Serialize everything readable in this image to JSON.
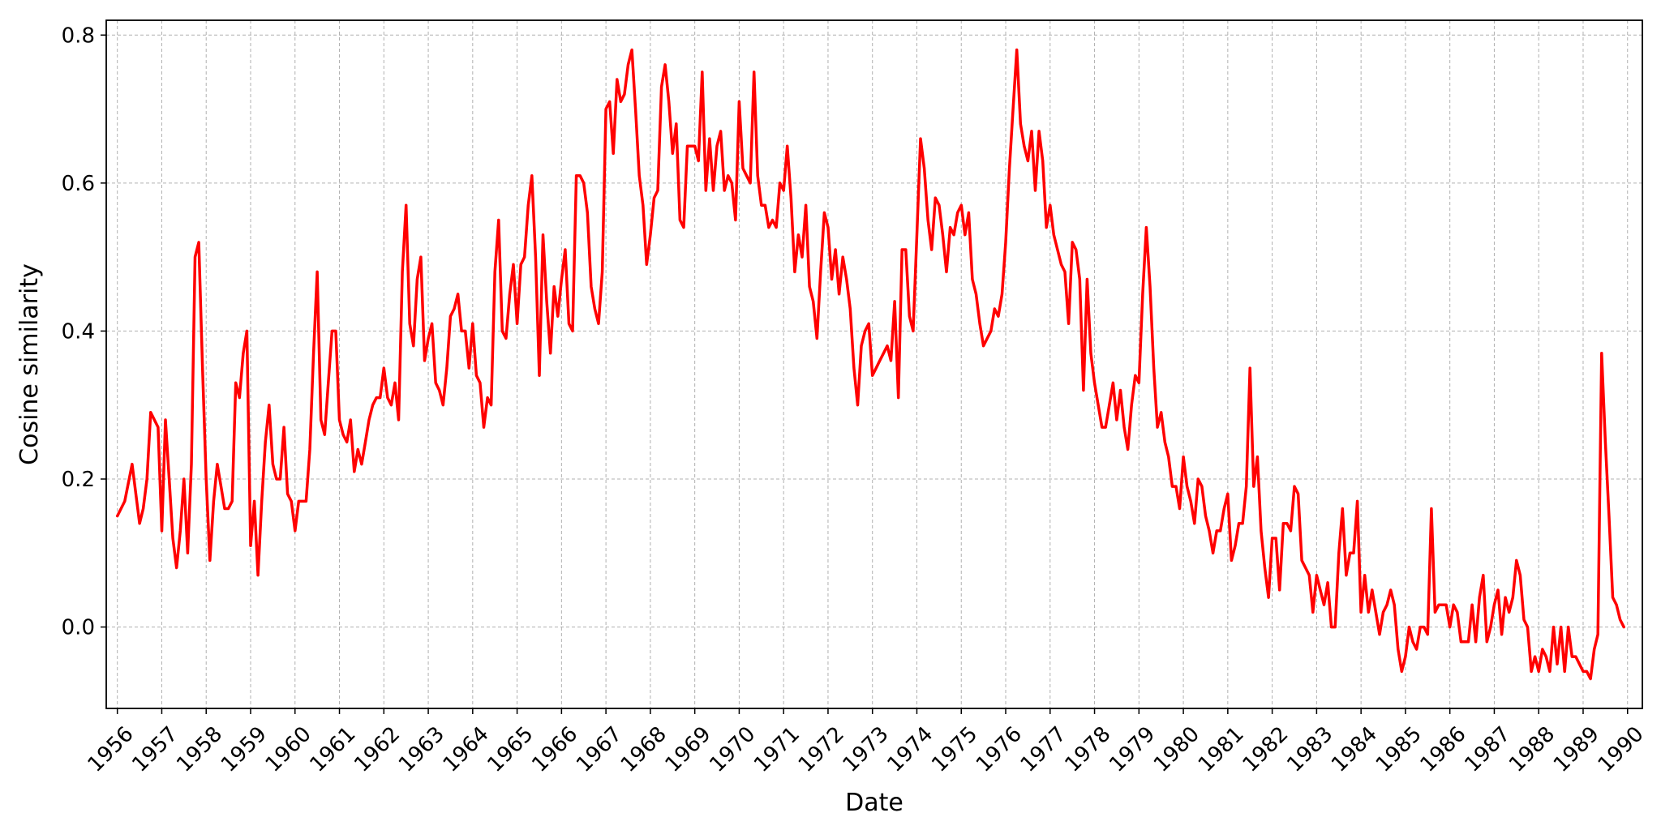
{
  "chart_data": {
    "type": "line",
    "title": "",
    "xlabel": "Date",
    "ylabel": "Cosine similarity",
    "xlim": [
      "1955-10-01",
      "1990-05-01"
    ],
    "ylim": [
      -0.11,
      0.82
    ],
    "x_tick_labels": [
      "1956",
      "1957",
      "1958",
      "1959",
      "1960",
      "1961",
      "1962",
      "1963",
      "1964",
      "1965",
      "1966",
      "1967",
      "1968",
      "1969",
      "1970",
      "1971",
      "1972",
      "1973",
      "1974",
      "1975",
      "1976",
      "1977",
      "1978",
      "1979",
      "1980",
      "1981",
      "1982",
      "1983",
      "1984",
      "1985",
      "1986",
      "1987",
      "1988",
      "1989",
      "1990"
    ],
    "y_ticks": [
      0.0,
      0.2,
      0.4,
      0.6,
      0.8
    ],
    "y_tick_labels": [
      "0.0",
      "0.2",
      "0.4",
      "0.6",
      "0.8"
    ],
    "grid": true,
    "colors": {
      "line": "#ff0000",
      "grid": "#b0b0b0",
      "axis": "#000000"
    },
    "series": [
      {
        "x": [
          "1956-01",
          "1956-03",
          "1956-05",
          "1956-07",
          "1956-08",
          "1956-09",
          "1956-10",
          "1956-12",
          "1957-01",
          "1957-02",
          "1957-03",
          "1957-04",
          "1957-05",
          "1957-06",
          "1957-07",
          "1957-08",
          "1957-09",
          "1957-10",
          "1957-11",
          "1957-12",
          "1958-01",
          "1958-02",
          "1958-03",
          "1958-04",
          "1958-05",
          "1958-06",
          "1958-07",
          "1958-08",
          "1958-09",
          "1958-10",
          "1958-11",
          "1958-12",
          "1959-01",
          "1959-02",
          "1959-03",
          "1959-04",
          "1959-05",
          "1959-06",
          "1959-07",
          "1959-08",
          "1959-09",
          "1959-10",
          "1959-11",
          "1959-12",
          "1960-01",
          "1960-02",
          "1960-03",
          "1960-04",
          "1960-05",
          "1960-06",
          "1960-07",
          "1960-08",
          "1960-09",
          "1960-10",
          "1960-11",
          "1960-12",
          "1961-01",
          "1961-02",
          "1961-03",
          "1961-04",
          "1961-05",
          "1961-06",
          "1961-07",
          "1961-08",
          "1961-09",
          "1961-10",
          "1961-11",
          "1961-12",
          "1962-01",
          "1962-02",
          "1962-03",
          "1962-04",
          "1962-05",
          "1962-06",
          "1962-07",
          "1962-08",
          "1962-09",
          "1962-10",
          "1962-11",
          "1962-12",
          "1963-01",
          "1963-02",
          "1963-03",
          "1963-04",
          "1963-05",
          "1963-06",
          "1963-07",
          "1963-08",
          "1963-09",
          "1963-10",
          "1963-11",
          "1963-12",
          "1964-01",
          "1964-02",
          "1964-03",
          "1964-04",
          "1964-05",
          "1964-06",
          "1964-07",
          "1964-08",
          "1964-09",
          "1964-10",
          "1964-11",
          "1964-12",
          "1965-01",
          "1965-02",
          "1965-03",
          "1965-04",
          "1965-05",
          "1965-06",
          "1965-07",
          "1965-08",
          "1965-09",
          "1965-10",
          "1965-11",
          "1965-12",
          "1966-01",
          "1966-02",
          "1966-03",
          "1966-04",
          "1966-05",
          "1966-06",
          "1966-07",
          "1966-08",
          "1966-09",
          "1966-10",
          "1966-11",
          "1966-12",
          "1967-01",
          "1967-02",
          "1967-03",
          "1967-04",
          "1967-05",
          "1967-06",
          "1967-07",
          "1967-08",
          "1967-09",
          "1967-10",
          "1967-11",
          "1967-12",
          "1968-01",
          "1968-02",
          "1968-03",
          "1968-04",
          "1968-05",
          "1968-06",
          "1968-07",
          "1968-08",
          "1968-09",
          "1968-10",
          "1968-11",
          "1968-12",
          "1969-01",
          "1969-02",
          "1969-03",
          "1969-04",
          "1969-05",
          "1969-06",
          "1969-07",
          "1969-08",
          "1969-09",
          "1969-10",
          "1969-11",
          "1969-12",
          "1970-01",
          "1970-02",
          "1970-03",
          "1970-04",
          "1970-05",
          "1970-06",
          "1970-07",
          "1970-08",
          "1970-09",
          "1970-10",
          "1970-11",
          "1970-12",
          "1971-01",
          "1971-02",
          "1971-03",
          "1971-04",
          "1971-05",
          "1971-06",
          "1971-07",
          "1971-08",
          "1971-09",
          "1971-10",
          "1971-11",
          "1971-12",
          "1972-01",
          "1972-02",
          "1972-03",
          "1972-04",
          "1972-05",
          "1972-06",
          "1972-07",
          "1972-08",
          "1972-09",
          "1972-10",
          "1972-11",
          "1972-12",
          "1973-01",
          "1973-02",
          "1973-03",
          "1973-04",
          "1973-05",
          "1973-06",
          "1973-07",
          "1973-08",
          "1973-09",
          "1973-10",
          "1973-11",
          "1973-12",
          "1974-01",
          "1974-02",
          "1974-03",
          "1974-04",
          "1974-05",
          "1974-06",
          "1974-07",
          "1974-08",
          "1974-09",
          "1974-10",
          "1974-11",
          "1974-12",
          "1975-01",
          "1975-02",
          "1975-03",
          "1975-04",
          "1975-05",
          "1975-06",
          "1975-07",
          "1975-08",
          "1975-09",
          "1975-10",
          "1975-11",
          "1975-12",
          "1976-01",
          "1976-02",
          "1976-03",
          "1976-04",
          "1976-05",
          "1976-06",
          "1976-07",
          "1976-08",
          "1976-09",
          "1976-10",
          "1976-11",
          "1976-12",
          "1977-01",
          "1977-02",
          "1977-03",
          "1977-04",
          "1977-05",
          "1977-06",
          "1977-07",
          "1977-08",
          "1977-09",
          "1977-10",
          "1977-11",
          "1977-12",
          "1978-01",
          "1978-02",
          "1978-03",
          "1978-04",
          "1978-05",
          "1978-06",
          "1978-07",
          "1978-08",
          "1978-09",
          "1978-10",
          "1978-11",
          "1978-12",
          "1979-01",
          "1979-02",
          "1979-03",
          "1979-04",
          "1979-05",
          "1979-06",
          "1979-07",
          "1979-08",
          "1979-09",
          "1979-10",
          "1979-11",
          "1979-12",
          "1980-01",
          "1980-02",
          "1980-03",
          "1980-04",
          "1980-05",
          "1980-06",
          "1980-07",
          "1980-08",
          "1980-09",
          "1980-10",
          "1980-11",
          "1980-12",
          "1981-01",
          "1981-02",
          "1981-03",
          "1981-04",
          "1981-05",
          "1981-06",
          "1981-07",
          "1981-08",
          "1981-09",
          "1981-10",
          "1981-11",
          "1981-12",
          "1982-01",
          "1982-02",
          "1982-03",
          "1982-04",
          "1982-05",
          "1982-06",
          "1982-07",
          "1982-08",
          "1982-09",
          "1982-10",
          "1982-11",
          "1982-12",
          "1983-01",
          "1983-02",
          "1983-03",
          "1983-04",
          "1983-05",
          "1983-06",
          "1983-07",
          "1983-08",
          "1983-09",
          "1983-10",
          "1983-11",
          "1983-12",
          "1984-01",
          "1984-02",
          "1984-03",
          "1984-04",
          "1984-05",
          "1984-06",
          "1984-07",
          "1984-08",
          "1984-09",
          "1984-10",
          "1984-11",
          "1984-12",
          "1985-01",
          "1985-02",
          "1985-03",
          "1985-04",
          "1985-05",
          "1985-06",
          "1985-07",
          "1985-08",
          "1985-09",
          "1985-10",
          "1985-11",
          "1985-12",
          "1986-01",
          "1986-02",
          "1986-03",
          "1986-04",
          "1986-05",
          "1986-06",
          "1986-07",
          "1986-08",
          "1986-09",
          "1986-10",
          "1986-11",
          "1986-12",
          "1987-01",
          "1987-02",
          "1987-03",
          "1987-04",
          "1987-05",
          "1987-06",
          "1987-07",
          "1987-08",
          "1987-09",
          "1987-10",
          "1987-11",
          "1987-12",
          "1988-01",
          "1988-02",
          "1988-03",
          "1988-04",
          "1988-05",
          "1988-06",
          "1988-07",
          "1988-08",
          "1988-09",
          "1988-10",
          "1988-11",
          "1988-12",
          "1989-01",
          "1989-02",
          "1989-03",
          "1989-04",
          "1989-05",
          "1989-06",
          "1989-07",
          "1989-08",
          "1989-09",
          "1989-10",
          "1989-11",
          "1989-12"
        ],
        "y": [
          0.15,
          0.17,
          0.22,
          0.14,
          0.16,
          0.2,
          0.29,
          0.27,
          0.13,
          0.28,
          0.2,
          0.12,
          0.08,
          0.13,
          0.2,
          0.1,
          0.22,
          0.5,
          0.52,
          0.35,
          0.2,
          0.09,
          0.17,
          0.22,
          0.19,
          0.16,
          0.16,
          0.17,
          0.33,
          0.31,
          0.37,
          0.4,
          0.11,
          0.17,
          0.07,
          0.17,
          0.25,
          0.3,
          0.22,
          0.2,
          0.2,
          0.27,
          0.18,
          0.17,
          0.13,
          0.17,
          0.17,
          0.17,
          0.24,
          0.37,
          0.48,
          0.28,
          0.26,
          0.33,
          0.4,
          0.4,
          0.28,
          0.26,
          0.25,
          0.28,
          0.21,
          0.24,
          0.22,
          0.25,
          0.28,
          0.3,
          0.31,
          0.31,
          0.35,
          0.31,
          0.3,
          0.33,
          0.28,
          0.48,
          0.57,
          0.41,
          0.38,
          0.47,
          0.5,
          0.36,
          0.39,
          0.41,
          0.33,
          0.32,
          0.3,
          0.35,
          0.42,
          0.43,
          0.45,
          0.4,
          0.4,
          0.35,
          0.41,
          0.34,
          0.33,
          0.27,
          0.31,
          0.3,
          0.48,
          0.55,
          0.4,
          0.39,
          0.45,
          0.49,
          0.41,
          0.49,
          0.5,
          0.57,
          0.61,
          0.5,
          0.34,
          0.53,
          0.44,
          0.37,
          0.46,
          0.42,
          0.47,
          0.51,
          0.41,
          0.4,
          0.61,
          0.61,
          0.6,
          0.56,
          0.46,
          0.43,
          0.41,
          0.48,
          0.7,
          0.71,
          0.64,
          0.74,
          0.71,
          0.72,
          0.76,
          0.78,
          0.7,
          0.61,
          0.57,
          0.49,
          0.53,
          0.58,
          0.59,
          0.73,
          0.76,
          0.71,
          0.64,
          0.68,
          0.55,
          0.54,
          0.65,
          0.65,
          0.65,
          0.63,
          0.75,
          0.59,
          0.66,
          0.59,
          0.65,
          0.67,
          0.59,
          0.61,
          0.6,
          0.55,
          0.71,
          0.62,
          0.61,
          0.6,
          0.75,
          0.61,
          0.57,
          0.57,
          0.54,
          0.55,
          0.54,
          0.6,
          0.59,
          0.65,
          0.58,
          0.48,
          0.53,
          0.5,
          0.57,
          0.46,
          0.44,
          0.39,
          0.48,
          0.56,
          0.54,
          0.47,
          0.51,
          0.45,
          0.5,
          0.47,
          0.43,
          0.35,
          0.3,
          0.38,
          0.4,
          0.41,
          0.34,
          0.35,
          0.36,
          0.37,
          0.38,
          0.36,
          0.44,
          0.31,
          0.51,
          0.51,
          0.42,
          0.4,
          0.53,
          0.66,
          0.62,
          0.55,
          0.51,
          0.58,
          0.57,
          0.53,
          0.48,
          0.54,
          0.53,
          0.56,
          0.57,
          0.53,
          0.56,
          0.47,
          0.45,
          0.41,
          0.38,
          0.39,
          0.4,
          0.43,
          0.42,
          0.45,
          0.52,
          0.62,
          0.7,
          0.78,
          0.68,
          0.65,
          0.63,
          0.67,
          0.59,
          0.67,
          0.63,
          0.54,
          0.57,
          0.53,
          0.51,
          0.49,
          0.48,
          0.41,
          0.52,
          0.51,
          0.47,
          0.32,
          0.47,
          0.37,
          0.33,
          0.3,
          0.27,
          0.27,
          0.3,
          0.33,
          0.28,
          0.32,
          0.27,
          0.24,
          0.3,
          0.34,
          0.33,
          0.45,
          0.54,
          0.46,
          0.35,
          0.27,
          0.29,
          0.25,
          0.23,
          0.19,
          0.19,
          0.16,
          0.23,
          0.19,
          0.17,
          0.14,
          0.2,
          0.19,
          0.15,
          0.13,
          0.1,
          0.13,
          0.13,
          0.16,
          0.18,
          0.09,
          0.11,
          0.14,
          0.14,
          0.19,
          0.35,
          0.19,
          0.23,
          0.13,
          0.08,
          0.04,
          0.12,
          0.12,
          0.05,
          0.14,
          0.14,
          0.13,
          0.19,
          0.18,
          0.09,
          0.08,
          0.07,
          0.02,
          0.07,
          0.05,
          0.03,
          0.06,
          0.0,
          0.0,
          0.1,
          0.16,
          0.07,
          0.1,
          0.1,
          0.17,
          0.02,
          0.07,
          0.02,
          0.05,
          0.02,
          -0.01,
          0.02,
          0.03,
          0.05,
          0.03,
          -0.03,
          -0.06,
          -0.04,
          0.0,
          -0.02,
          -0.03,
          0.0,
          0.0,
          -0.01,
          0.16,
          0.02,
          0.03,
          0.03,
          0.03,
          0.0,
          0.03,
          0.02,
          -0.02,
          -0.02,
          -0.02,
          0.03,
          -0.02,
          0.04,
          0.07,
          -0.02,
          0.0,
          0.03,
          0.05,
          -0.01,
          0.04,
          0.02,
          0.04,
          0.09,
          0.07,
          0.01,
          0.0,
          -0.06,
          -0.04,
          -0.06,
          -0.03,
          -0.04,
          -0.06,
          0.0,
          -0.05,
          0.0,
          -0.06,
          0.0,
          -0.04,
          -0.04,
          -0.05,
          -0.06,
          -0.06,
          -0.07,
          -0.03,
          -0.01,
          0.37,
          0.25,
          0.15,
          0.04,
          0.03,
          0.01,
          0.0
        ]
      }
    ]
  }
}
